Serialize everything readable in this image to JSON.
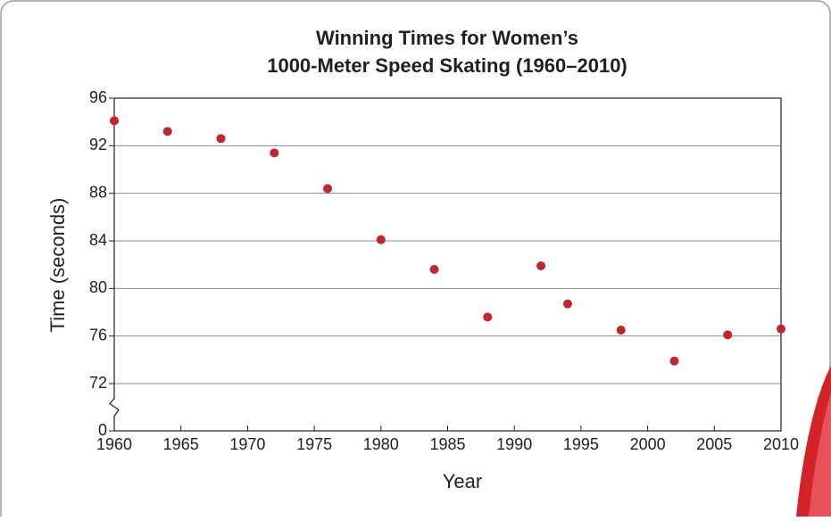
{
  "chart_data": {
    "type": "scatter",
    "title": [
      "Winning Times for Women’s",
      "1000-Meter Speed Skating (1960–2010)"
    ],
    "x_label": "Year",
    "y_label": "Time (seconds)",
    "x": [
      1960,
      1964,
      1968,
      1972,
      1976,
      1980,
      1984,
      1988,
      1992,
      1994,
      1998,
      2002,
      2006,
      2010
    ],
    "series": [
      {
        "color": "#c0272d",
        "values": [
          94.1,
          93.2,
          92.6,
          91.4,
          88.4,
          84.1,
          81.6,
          77.6,
          81.9,
          78.7,
          76.5,
          73.9,
          76.1,
          76.6
        ]
      }
    ],
    "xlim": [
      1960,
      2010
    ],
    "xticks": [
      1960,
      1965,
      1970,
      1975,
      1980,
      1985,
      1990,
      1995,
      2000,
      2005,
      2010
    ],
    "ylim": [
      0,
      96
    ],
    "yticks": [
      0,
      72,
      76,
      80,
      84,
      88,
      92,
      96
    ],
    "y_axis_break": [
      0,
      72
    ],
    "grid": true
  }
}
